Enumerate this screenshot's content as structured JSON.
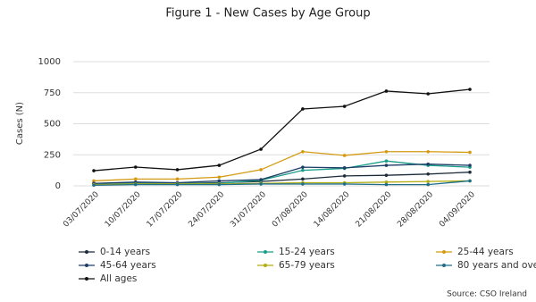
{
  "chart_data": {
    "type": "line",
    "title": "Figure 1 - New Cases by Age Group",
    "y_label": "Cases (N)",
    "source": "Source: CSO Ireland",
    "categories": [
      "03/07/2020",
      "10/07/2020",
      "17/07/2020",
      "24/07/2020",
      "31/07/2020",
      "07/08/2020",
      "14/08/2020",
      "21/08/2020",
      "28/08/2020",
      "04/09/2020"
    ],
    "ylim": [
      0,
      1000
    ],
    "yticks": [
      0,
      250,
      500,
      750,
      1000
    ],
    "grid": true,
    "series": [
      {
        "name": "0-14 years",
        "color": "#1c2b3a",
        "values": [
          20,
          25,
          20,
          25,
          35,
          55,
          80,
          85,
          95,
          110
        ]
      },
      {
        "name": "15-24 years",
        "color": "#1a9e8a",
        "values": [
          15,
          25,
          20,
          20,
          45,
          125,
          140,
          200,
          165,
          150
        ]
      },
      {
        "name": "25-44 years",
        "color": "#d49a12",
        "values": [
          40,
          55,
          55,
          70,
          130,
          275,
          245,
          275,
          275,
          270
        ]
      },
      {
        "name": "45-64 years",
        "color": "#1d3d66",
        "values": [
          20,
          30,
          25,
          40,
          50,
          150,
          145,
          165,
          175,
          165
        ]
      },
      {
        "name": "65-79 years",
        "color": "#b3ad0f",
        "values": [
          10,
          15,
          15,
          15,
          20,
          25,
          25,
          30,
          35,
          40
        ]
      },
      {
        "name": "80 years and over",
        "color": "#1f6f8b",
        "values": [
          5,
          10,
          10,
          10,
          15,
          15,
          15,
          10,
          10,
          40
        ]
      },
      {
        "name": "All ages",
        "color": "#111111",
        "values": [
          122,
          151,
          130,
          165,
          295,
          619,
          640,
          763,
          741,
          777
        ]
      }
    ]
  }
}
